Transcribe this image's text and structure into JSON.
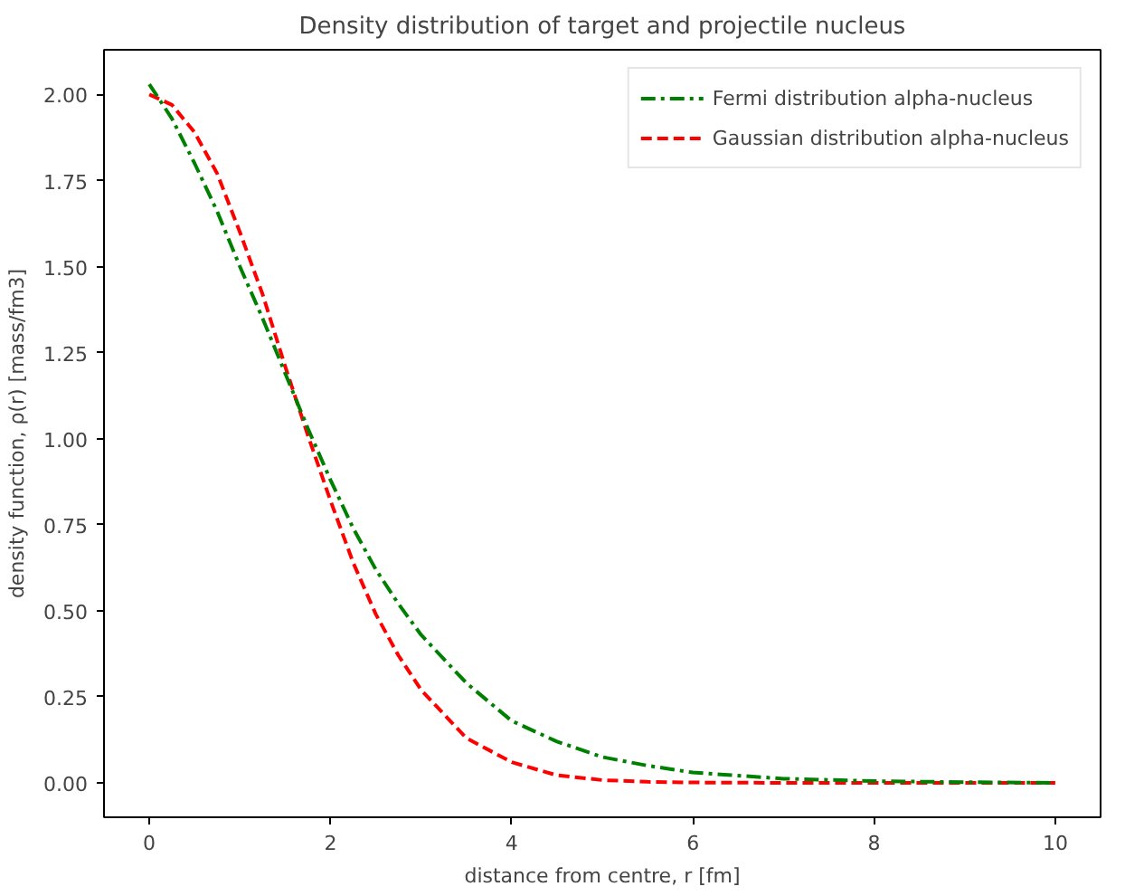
{
  "chart_data": {
    "type": "line",
    "title": "Density distribution of target and projectile nucleus",
    "xlabel": "distance from centre, r [fm]",
    "ylabel": "density function, ρ(r) [mass/fm3]",
    "x": [
      0,
      0.25,
      0.5,
      0.75,
      1,
      1.25,
      1.5,
      1.75,
      2,
      2.25,
      2.5,
      2.75,
      3,
      3.5,
      4,
      4.5,
      5,
      5.5,
      6,
      7,
      8,
      9,
      10
    ],
    "series": [
      {
        "name": "Fermi distribution alpha-nucleus",
        "color": "#008000",
        "line_style": "dashdot",
        "values": [
          2.03,
          1.93,
          1.8,
          1.66,
          1.5,
          1.35,
          1.19,
          1.03,
          0.88,
          0.74,
          0.62,
          0.52,
          0.43,
          0.29,
          0.18,
          0.12,
          0.075,
          0.05,
          0.03,
          0.012,
          0.005,
          0.002,
          0.0
        ]
      },
      {
        "name": "Gaussian distribution alpha-nucleus",
        "color": "#ff0000",
        "line_style": "dashed",
        "values": [
          2.0,
          1.97,
          1.89,
          1.77,
          1.6,
          1.42,
          1.21,
          1.01,
          0.82,
          0.64,
          0.49,
          0.37,
          0.27,
          0.13,
          0.06,
          0.022,
          0.008,
          0.003,
          0.001,
          0.0,
          0.0,
          0.0,
          0.0
        ]
      }
    ],
    "xlim": [
      -0.5,
      10.5
    ],
    "ylim": [
      -0.1,
      2.13
    ],
    "xticks": [
      0,
      2,
      4,
      6,
      8,
      10
    ],
    "yticks": [
      {
        "value": 0,
        "label": "0.00"
      },
      {
        "value": 0.25,
        "label": "0.25"
      },
      {
        "value": 0.5,
        "label": "0.50"
      },
      {
        "value": 0.75,
        "label": "0.75"
      },
      {
        "value": 1,
        "label": "1.00"
      },
      {
        "value": 1.25,
        "label": "1.25"
      },
      {
        "value": 1.5,
        "label": "1.50"
      },
      {
        "value": 1.75,
        "label": "1.75"
      },
      {
        "value": 2,
        "label": "2.00"
      }
    ],
    "grid": false,
    "legend": "top right",
    "marker": "none"
  }
}
